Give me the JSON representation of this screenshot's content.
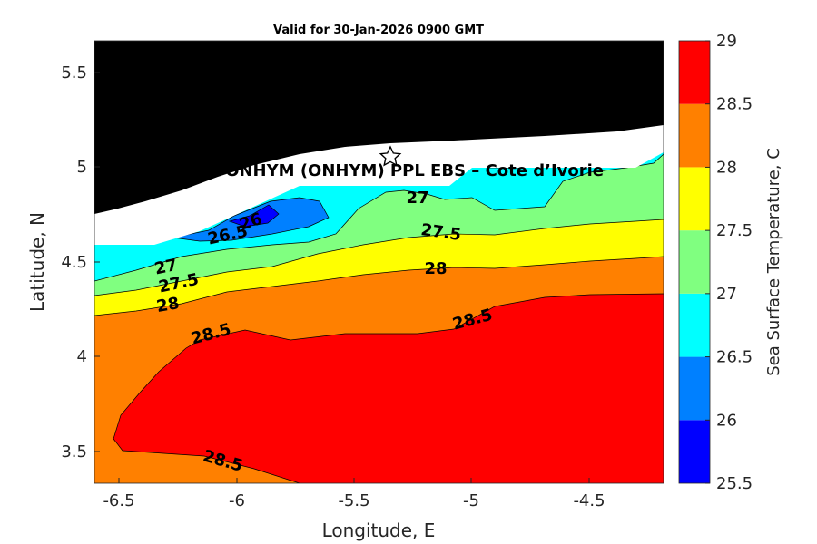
{
  "chart_data": {
    "type": "heatmap",
    "subtype": "filled-contour",
    "title": "Valid for 30-Jan-2026 0900 GMT",
    "xlabel": "Longitude, E",
    "ylabel": "Latitude, N",
    "xlim": [
      -6.6,
      -4.2
    ],
    "ylim": [
      3.33,
      5.67
    ],
    "x_ticks": [
      -6.5,
      -6,
      -5.5,
      -5,
      -4.5
    ],
    "y_ticks": [
      3.5,
      4,
      4.5,
      5,
      5.5
    ],
    "x_tick_labels": [
      "-6.5",
      "-6",
      "-5.5",
      "-5",
      "-4.5"
    ],
    "y_tick_labels": [
      "3.5",
      "4",
      "4.5",
      "5",
      "5.5"
    ],
    "colorbar": {
      "label": "Sea Surface Temperature, C",
      "levels": [
        25.5,
        26,
        26.5,
        27,
        27.5,
        28,
        28.5,
        29
      ],
      "level_labels": [
        "25.5",
        "26",
        "26.5",
        "27",
        "27.5",
        "28",
        "28.5",
        "29"
      ],
      "colors": [
        "#0000ff",
        "#0080ff",
        "#00ffff",
        "#80ff80",
        "#ffff00",
        "#ff8000",
        "#ff0000"
      ]
    },
    "land_color": "#000000",
    "nodata_color": "#ffffff",
    "contour_labels": [
      {
        "text": "26",
        "lon": -5.93,
        "lat": 4.72
      },
      {
        "text": "26.5",
        "lon": -6.13,
        "lat": 4.65
      },
      {
        "text": "27",
        "lon": -5.29,
        "lat": 4.84
      },
      {
        "text": "27.5",
        "lon": -5.13,
        "lat": 4.64
      },
      {
        "text": "28",
        "lon": -5.15,
        "lat": 4.46
      },
      {
        "text": "27",
        "lon": -6.34,
        "lat": 4.46
      },
      {
        "text": "27.5",
        "lon": -6.27,
        "lat": 4.37
      },
      {
        "text": "28",
        "lon": -6.29,
        "lat": 4.25
      },
      {
        "text": "28.5",
        "lon": -6.12,
        "lat": 4.11
      },
      {
        "text": "28.5",
        "lon": -4.99,
        "lat": 4.17
      },
      {
        "text": "28.5",
        "lon": -6.07,
        "lat": 3.44
      }
    ],
    "site": {
      "label": "PETROCI & ONHYM (ONHYM) PPL EBS  – Cote d’Ivorie",
      "lon": -5.34,
      "lat": 5.05
    }
  }
}
